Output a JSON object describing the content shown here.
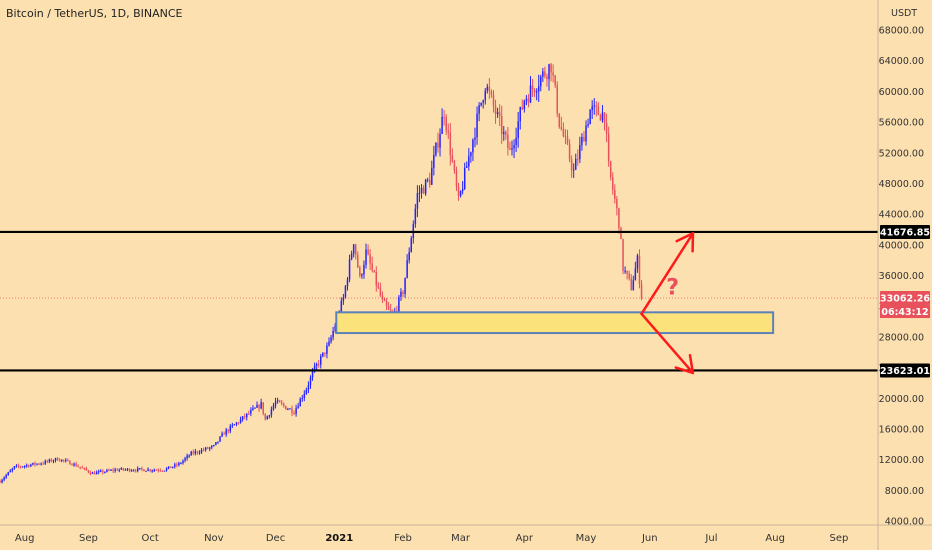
{
  "header": {
    "title": "Bitcoin / TetherUS, 1D, BINANCE"
  },
  "price_axis": {
    "currency_label": "USDT"
  },
  "last_price": {
    "value": "33062.26",
    "countdown": "06:43:12",
    "color": "#e8505b"
  },
  "colors": {
    "background": "#fde0b0",
    "up_candle": "#2323ff",
    "down_candle": "#e8505b",
    "support_zone_fill": "#fbe27a",
    "support_zone_border": "#5b82b8",
    "arrows": "#ff1a1a",
    "level_lines": "#000000"
  },
  "annotations": {
    "question_mark": "?"
  },
  "chart_data": {
    "type": "candlestick",
    "title": "Bitcoin / TetherUS, 1D, BINANCE",
    "x_ticks": [
      "Aug",
      "Sep",
      "Oct",
      "Nov",
      "Dec",
      "2021",
      "Feb",
      "Mar",
      "Apr",
      "May",
      "Jun",
      "Jul",
      "Aug",
      "Sep"
    ],
    "y_ticks": [
      "68000.00",
      "64000.00",
      "60000.00",
      "56000.00",
      "52000.00",
      "48000.00",
      "44000.00",
      "40000.00",
      "36000.00",
      "32000.00",
      "28000.00",
      "24000.00",
      "20000.00",
      "16000.00",
      "12000.00",
      "8000.00",
      "4000.00"
    ],
    "ylim": [
      3500,
      69500
    ],
    "x_range": [
      "2020-07-20",
      "2021-09-20"
    ],
    "horizontal_levels": [
      {
        "value": 41676.85,
        "label": "41676.85"
      },
      {
        "value": 23623.01,
        "label": "23623.01"
      }
    ],
    "support_zone": {
      "from": "2021-01-01",
      "to": "2021-07-31",
      "low": 28500,
      "high": 31200
    },
    "scenario_arrows": [
      {
        "from_date": "2021-05-28",
        "from_price": 31000,
        "to_date": "2021-06-22",
        "to_price": 41500,
        "direction": "up"
      },
      {
        "from_date": "2021-05-28",
        "from_price": 31000,
        "to_date": "2021-06-22",
        "to_price": 23300,
        "direction": "down"
      }
    ],
    "price_path": [
      [
        "2020-07-20",
        9200
      ],
      [
        "2020-07-27",
        11000
      ],
      [
        "2020-08-10",
        11600
      ],
      [
        "2020-08-17",
        12100
      ],
      [
        "2020-08-24",
        11500
      ],
      [
        "2020-09-03",
        10200
      ],
      [
        "2020-09-15",
        10700
      ],
      [
        "2020-09-25",
        10700
      ],
      [
        "2020-10-08",
        10700
      ],
      [
        "2020-10-15",
        11400
      ],
      [
        "2020-10-21",
        12800
      ],
      [
        "2020-11-01",
        13700
      ],
      [
        "2020-11-06",
        15500
      ],
      [
        "2020-11-18",
        18000
      ],
      [
        "2020-11-24",
        19200
      ],
      [
        "2020-11-26",
        17200
      ],
      [
        "2020-12-01",
        19500
      ],
      [
        "2020-12-10",
        18300
      ],
      [
        "2020-12-16",
        21300
      ],
      [
        "2020-12-20",
        23800
      ],
      [
        "2020-12-27",
        27000
      ],
      [
        "2021-01-03",
        33000
      ],
      [
        "2021-01-08",
        40600
      ],
      [
        "2021-01-11",
        35500
      ],
      [
        "2021-01-14",
        39000
      ],
      [
        "2021-01-22",
        32500
      ],
      [
        "2021-01-27",
        30500
      ],
      [
        "2021-02-01",
        34000
      ],
      [
        "2021-02-08",
        46500
      ],
      [
        "2021-02-14",
        48500
      ],
      [
        "2021-02-21",
        57500
      ],
      [
        "2021-02-28",
        45500
      ],
      [
        "2021-03-13",
        61000
      ],
      [
        "2021-03-25",
        52000
      ],
      [
        "2021-04-01",
        59000
      ],
      [
        "2021-04-14",
        63500
      ],
      [
        "2021-04-18",
        56000
      ],
      [
        "2021-04-25",
        49500
      ],
      [
        "2021-05-03",
        57500
      ],
      [
        "2021-05-10",
        57000
      ],
      [
        "2021-05-12",
        50000
      ],
      [
        "2021-05-17",
        43000
      ],
      [
        "2021-05-19",
        37000
      ],
      [
        "2021-05-23",
        34500
      ],
      [
        "2021-05-26",
        38000
      ],
      [
        "2021-05-28",
        33062
      ]
    ]
  }
}
